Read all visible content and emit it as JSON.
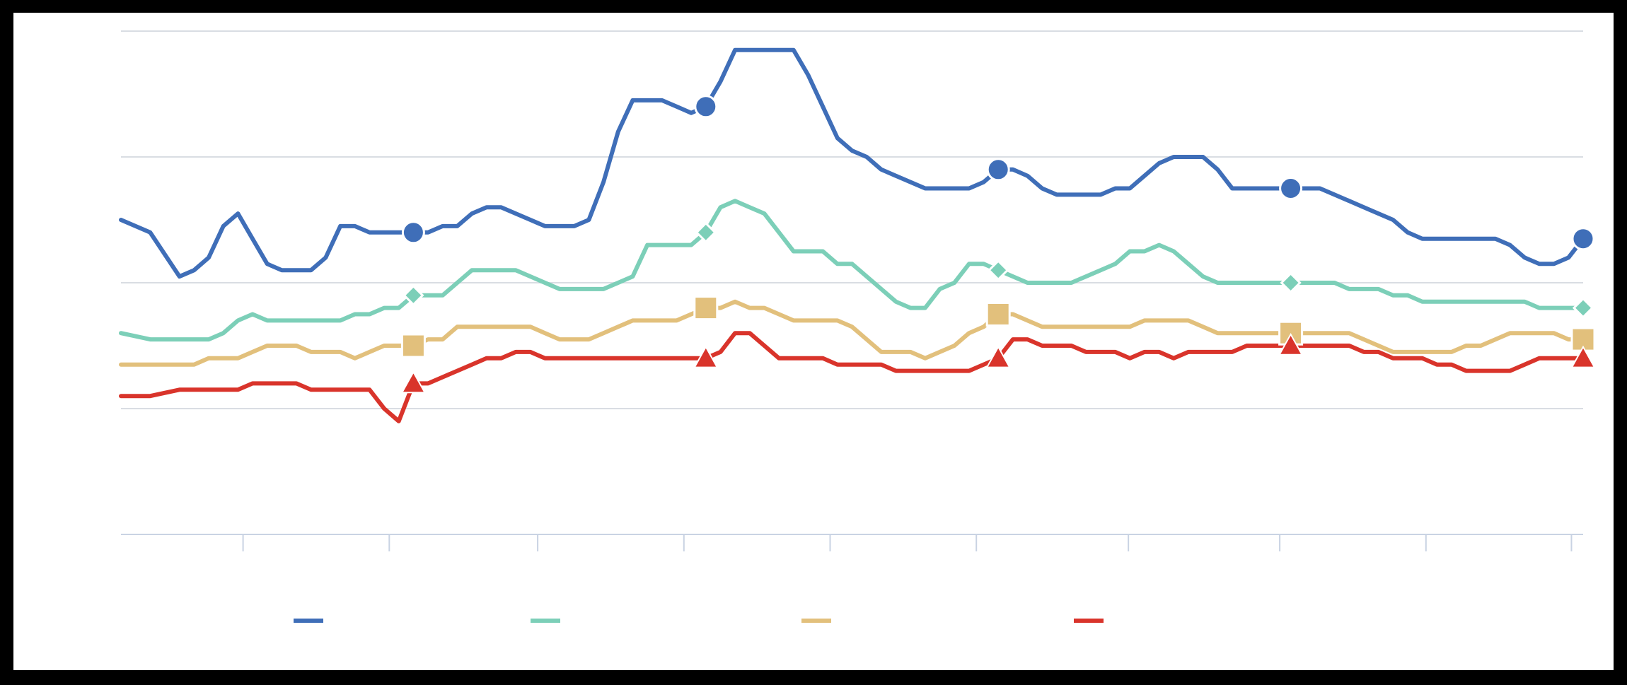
{
  "chart_data": {
    "type": "line",
    "title": "",
    "xlabel": "",
    "ylabel": "",
    "x": [
      0,
      4,
      8,
      10,
      12,
      14,
      16,
      18,
      20,
      22,
      24,
      26,
      28,
      30,
      32,
      34,
      36,
      38,
      40,
      42,
      44,
      46,
      48,
      50,
      52,
      54,
      56,
      58,
      60,
      62,
      64,
      66,
      68,
      70,
      72,
      74,
      76,
      78,
      80,
      82,
      84,
      86,
      88,
      90,
      92,
      94,
      96,
      98,
      100,
      102,
      104,
      106,
      108,
      110,
      112,
      114,
      116,
      118,
      120,
      122,
      124,
      126,
      128,
      130,
      132,
      134,
      136,
      138,
      140,
      142,
      144,
      146,
      148,
      150,
      152,
      154,
      156,
      158,
      160,
      162,
      164,
      166,
      168,
      170,
      172,
      174,
      176,
      178,
      180,
      182,
      184,
      186,
      188,
      190,
      192,
      194,
      196,
      198,
      200
    ],
    "xlim": [
      0,
      200
    ],
    "ylim": [
      0,
      8
    ],
    "grid": true,
    "legend_position": "bottom",
    "series": [
      {
        "color": "#3f6eb8",
        "marker": "circle",
        "values": [
          5.0,
          4.8,
          4.1,
          4.2,
          4.4,
          4.9,
          5.1,
          4.7,
          4.3,
          4.2,
          4.2,
          4.2,
          4.4,
          4.9,
          4.9,
          4.8,
          4.8,
          4.8,
          4.8,
          4.8,
          4.9,
          4.9,
          5.1,
          5.2,
          5.2,
          5.1,
          5.0,
          4.9,
          4.9,
          4.9,
          5.0,
          5.6,
          6.4,
          6.9,
          6.9,
          6.9,
          6.8,
          6.7,
          6.8,
          7.2,
          7.7,
          7.7,
          7.7,
          7.7,
          7.7,
          7.3,
          6.8,
          6.3,
          6.1,
          6.0,
          5.8,
          5.7,
          5.6,
          5.5,
          5.5,
          5.5,
          5.5,
          5.6,
          5.8,
          5.8,
          5.7,
          5.5,
          5.4,
          5.4,
          5.4,
          5.4,
          5.5,
          5.5,
          5.7,
          5.9,
          6.0,
          6.0,
          6.0,
          5.8,
          5.5,
          5.5,
          5.5,
          5.5,
          5.5,
          5.5,
          5.5,
          5.4,
          5.3,
          5.2,
          5.1,
          5.0,
          4.8,
          4.7,
          4.7,
          4.7,
          4.7,
          4.7,
          4.7,
          4.6,
          4.4,
          4.3,
          4.3,
          4.4,
          4.7
        ]
      },
      {
        "color": "#7ccfb8",
        "marker": "diamond",
        "values": [
          3.2,
          3.1,
          3.1,
          3.1,
          3.1,
          3.2,
          3.4,
          3.5,
          3.4,
          3.4,
          3.4,
          3.4,
          3.4,
          3.4,
          3.5,
          3.5,
          3.6,
          3.6,
          3.8,
          3.8,
          3.8,
          4.0,
          4.2,
          4.2,
          4.2,
          4.2,
          4.1,
          4.0,
          3.9,
          3.9,
          3.9,
          3.9,
          4.0,
          4.1,
          4.6,
          4.6,
          4.6,
          4.6,
          4.8,
          5.2,
          5.3,
          5.2,
          5.1,
          4.8,
          4.5,
          4.5,
          4.5,
          4.3,
          4.3,
          4.1,
          3.9,
          3.7,
          3.6,
          3.6,
          3.9,
          4.0,
          4.3,
          4.3,
          4.2,
          4.1,
          4.0,
          4.0,
          4.0,
          4.0,
          4.1,
          4.2,
          4.3,
          4.5,
          4.5,
          4.6,
          4.5,
          4.3,
          4.1,
          4.0,
          4.0,
          4.0,
          4.0,
          4.0,
          4.0,
          4.0,
          4.0,
          4.0,
          3.9,
          3.9,
          3.9,
          3.8,
          3.8,
          3.7,
          3.7,
          3.7,
          3.7,
          3.7,
          3.7,
          3.7,
          3.7,
          3.6,
          3.6,
          3.6,
          3.6
        ]
      },
      {
        "color": "#e2c07c",
        "marker": "square",
        "values": [
          2.7,
          2.7,
          2.7,
          2.7,
          2.8,
          2.8,
          2.8,
          2.9,
          3.0,
          3.0,
          3.0,
          2.9,
          2.9,
          2.9,
          2.8,
          2.9,
          3.0,
          3.0,
          3.0,
          3.1,
          3.1,
          3.3,
          3.3,
          3.3,
          3.3,
          3.3,
          3.3,
          3.2,
          3.1,
          3.1,
          3.1,
          3.2,
          3.3,
          3.4,
          3.4,
          3.4,
          3.4,
          3.5,
          3.6,
          3.6,
          3.7,
          3.6,
          3.6,
          3.5,
          3.4,
          3.4,
          3.4,
          3.4,
          3.3,
          3.1,
          2.9,
          2.9,
          2.9,
          2.8,
          2.9,
          3.0,
          3.2,
          3.3,
          3.5,
          3.5,
          3.4,
          3.3,
          3.3,
          3.3,
          3.3,
          3.3,
          3.3,
          3.3,
          3.4,
          3.4,
          3.4,
          3.4,
          3.3,
          3.2,
          3.2,
          3.2,
          3.2,
          3.2,
          3.2,
          3.2,
          3.2,
          3.2,
          3.2,
          3.1,
          3.0,
          2.9,
          2.9,
          2.9,
          2.9,
          2.9,
          3.0,
          3.0,
          3.1,
          3.2,
          3.2,
          3.2,
          3.2,
          3.1,
          3.1
        ]
      },
      {
        "color": "#d9342b",
        "marker": "triangle",
        "values": [
          2.2,
          2.2,
          2.3,
          2.3,
          2.3,
          2.3,
          2.3,
          2.4,
          2.4,
          2.4,
          2.4,
          2.3,
          2.3,
          2.3,
          2.3,
          2.3,
          2.0,
          1.8,
          2.4,
          2.4,
          2.5,
          2.6,
          2.7,
          2.8,
          2.8,
          2.9,
          2.9,
          2.8,
          2.8,
          2.8,
          2.8,
          2.8,
          2.8,
          2.8,
          2.8,
          2.8,
          2.8,
          2.8,
          2.8,
          2.9,
          3.2,
          3.2,
          3.0,
          2.8,
          2.8,
          2.8,
          2.8,
          2.7,
          2.7,
          2.7,
          2.7,
          2.6,
          2.6,
          2.6,
          2.6,
          2.6,
          2.6,
          2.7,
          2.8,
          3.1,
          3.1,
          3.0,
          3.0,
          3.0,
          2.9,
          2.9,
          2.9,
          2.8,
          2.9,
          2.9,
          2.8,
          2.9,
          2.9,
          2.9,
          2.9,
          3.0,
          3.0,
          3.0,
          3.0,
          3.0,
          3.0,
          3.0,
          3.0,
          2.9,
          2.9,
          2.8,
          2.8,
          2.8,
          2.7,
          2.7,
          2.6,
          2.6,
          2.6,
          2.6,
          2.7,
          2.8,
          2.8,
          2.8,
          2.8
        ]
      }
    ],
    "marker_x": [
      40,
      80,
      120,
      160,
      200
    ],
    "x_ticks": [
      16.7,
      36.7,
      57,
      77,
      97,
      117,
      137.8,
      158.5,
      178.5,
      198.4
    ]
  },
  "legend": {
    "items": [
      {
        "color": "#3f6eb8",
        "label": ""
      },
      {
        "color": "#7ccfb8",
        "label": ""
      },
      {
        "color": "#e2c07c",
        "label": ""
      },
      {
        "color": "#d9342b",
        "label": ""
      }
    ]
  }
}
